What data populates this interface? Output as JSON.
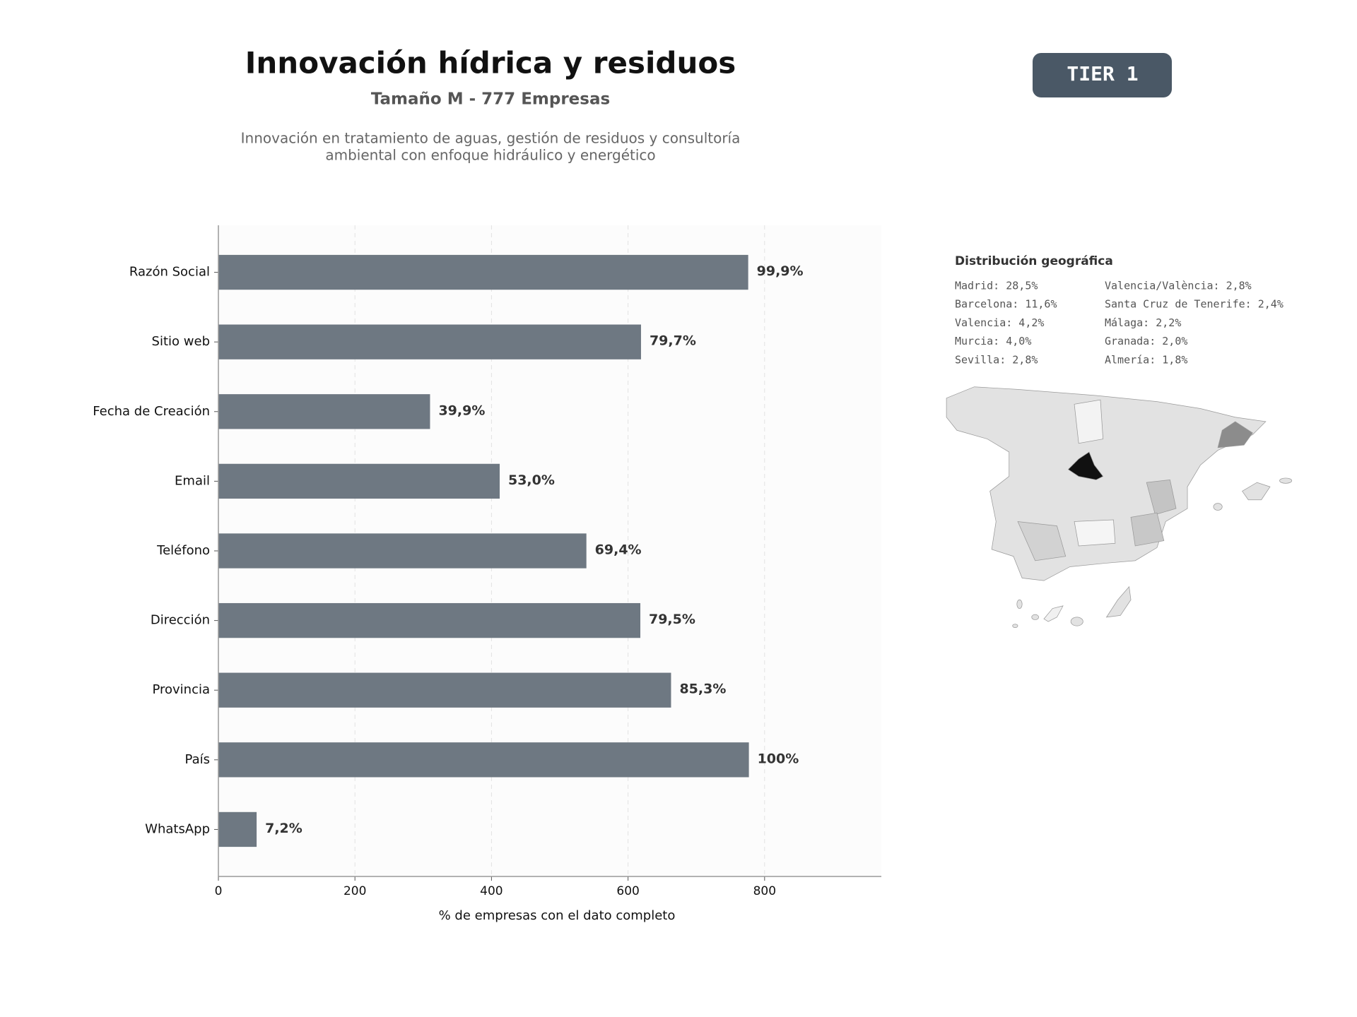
{
  "header": {
    "title": "Innovación hídrica y residuos",
    "subtitle": "Tamaño M - 777 Empresas",
    "description": [
      "Innovación en tratamiento de aguas, gestión de residuos y consultoría",
      "ambiental con enfoque hidráulico y energético"
    ],
    "badge": "TIER 1"
  },
  "chart_data": {
    "type": "bar",
    "orientation": "horizontal",
    "color": "#6e7882",
    "categories": [
      "Razón Social",
      "Sitio web",
      "Fecha de Creación",
      "Email",
      "Teléfono",
      "Dirección",
      "Provincia",
      "País",
      "WhatsApp"
    ],
    "values": [
      776,
      619,
      310,
      412,
      539,
      618,
      663,
      777,
      56
    ],
    "value_labels": [
      "99,9%",
      "79,7%",
      "39,9%",
      "53,0%",
      "69,4%",
      "79,5%",
      "85,3%",
      "100%",
      "7,2%"
    ],
    "xlim": [
      0,
      971
    ],
    "xticks": [
      0,
      200,
      400,
      600,
      800
    ],
    "grid": true,
    "xlabel": "% de empresas con el dato completo"
  },
  "geo_distribution": {
    "title": "Distribución geográfica",
    "columns": [
      [
        "Madrid: 28,5%",
        "Barcelona: 11,6%",
        "Valencia: 4,2%",
        "Murcia: 4,0%",
        "Sevilla: 2,8%"
      ],
      [
        "Valencia/València: 2,8%",
        "Santa Cruz de Tenerife: 2,4%",
        "Málaga: 2,2%",
        "Granada: 2,0%",
        "Almería: 1,8%"
      ]
    ]
  }
}
